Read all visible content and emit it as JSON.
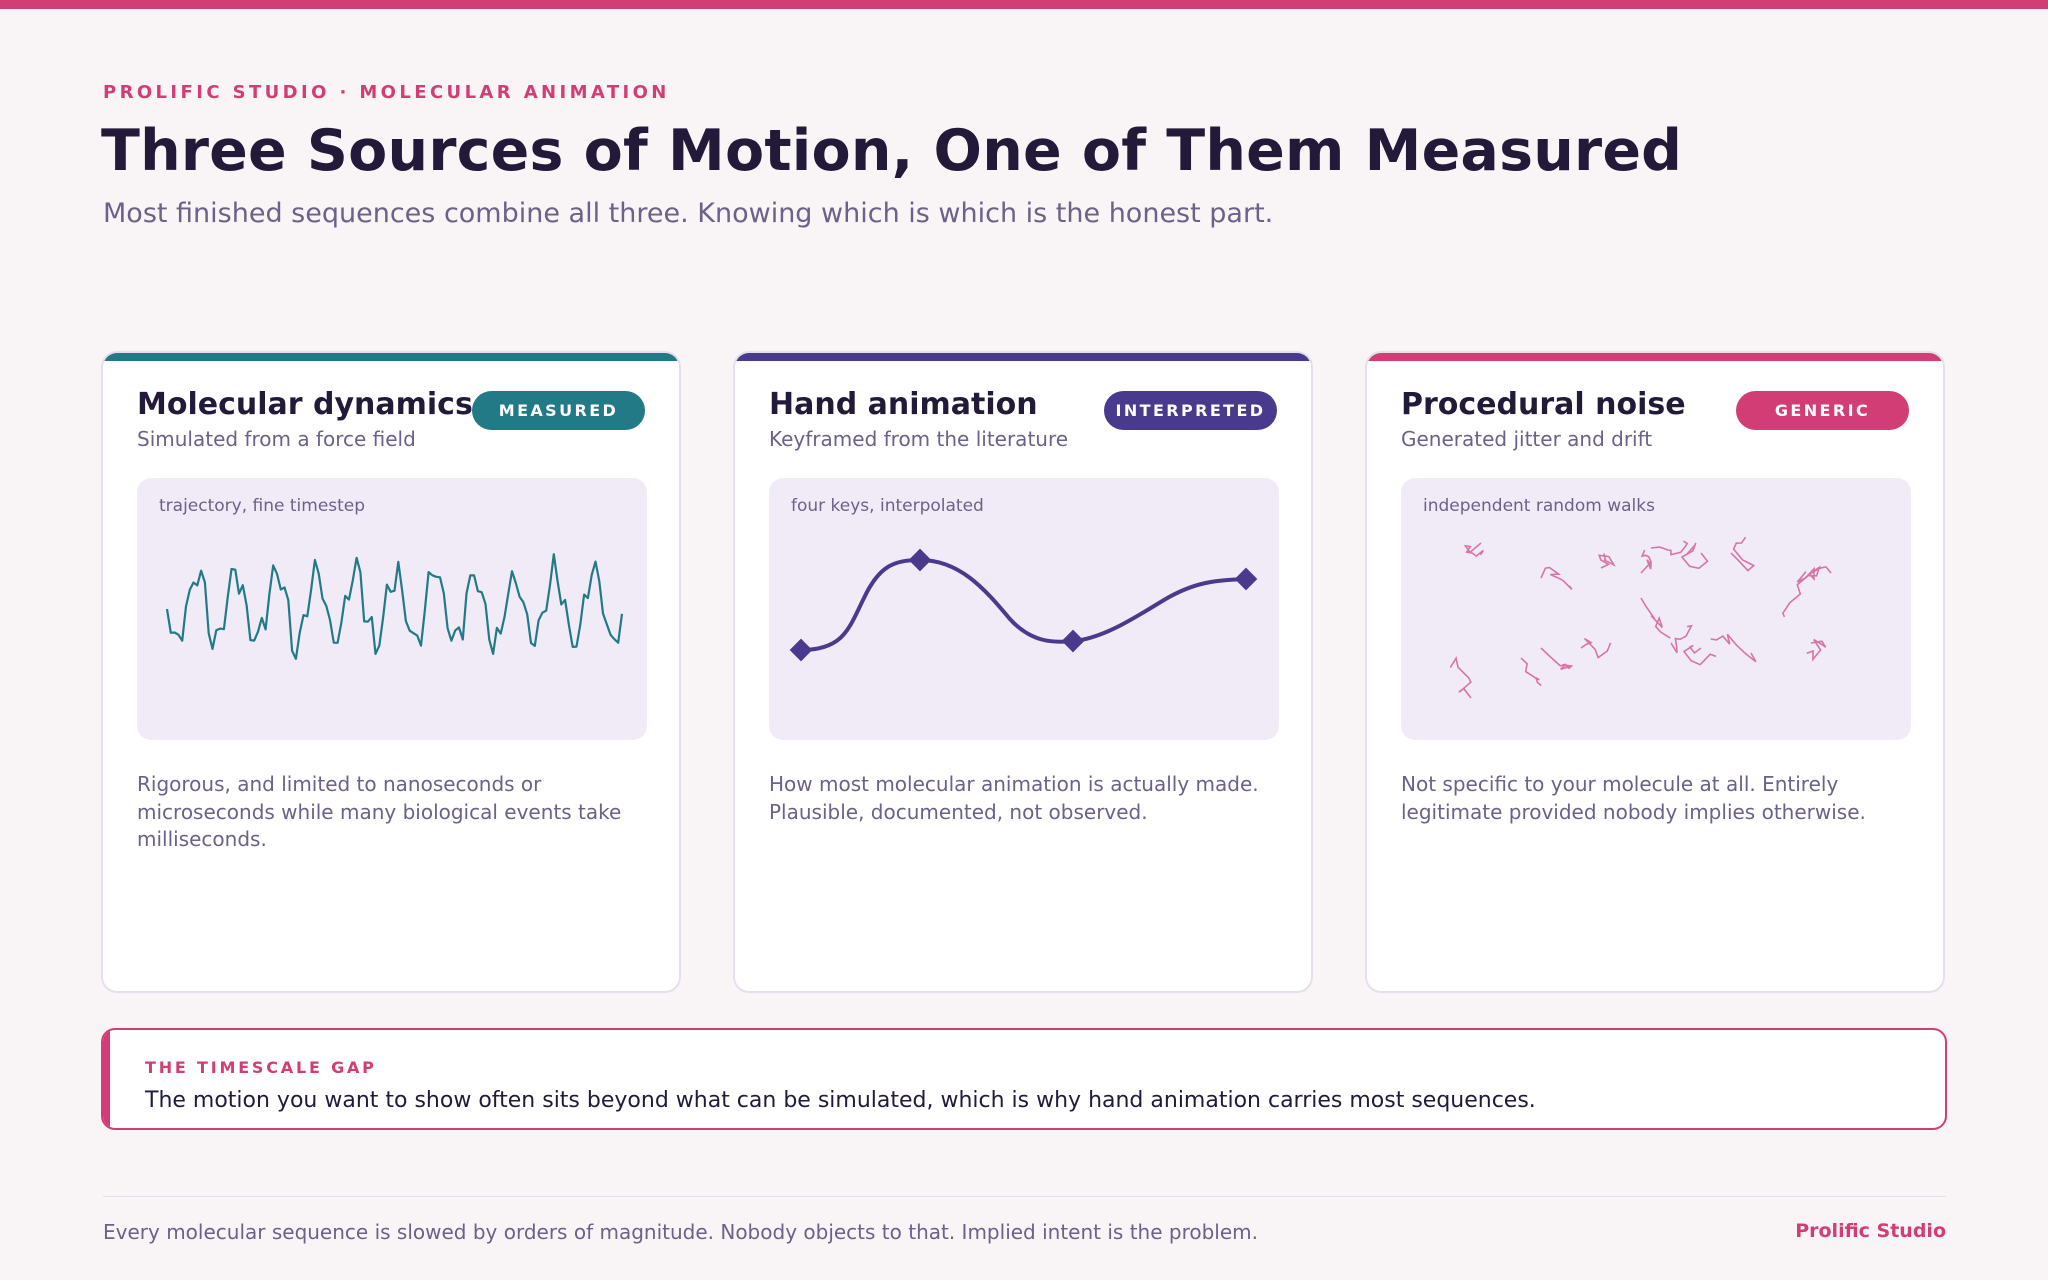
{
  "header": {
    "eyebrow": "PROLIFIC STUDIO · MOLECULAR ANIMATION",
    "title": "Three Sources of Motion, One of Them Measured",
    "subtitle": "Most finished sequences combine all three. Knowing which is which is the honest part."
  },
  "colors": {
    "brand": "#d23d75",
    "measured": "#217a86",
    "interpreted": "#4a3a8e",
    "generic": "#d23d75",
    "noise_stroke": "#d675a6"
  },
  "cards": [
    {
      "title": "Molecular dynamics",
      "badge": "MEASURED",
      "subtitle": "Simulated from a force field",
      "viz_label": "trajectory, fine timestep",
      "body": "Rigorous, and limited to nanoseconds or microseconds while many biological events take milliseconds."
    },
    {
      "title": "Hand animation",
      "badge": "INTERPRETED",
      "subtitle": "Keyframed from the literature",
      "viz_label": "four keys, interpolated",
      "body": "How most molecular animation is actually made. Plausible, documented, not observed."
    },
    {
      "title": "Procedural noise",
      "badge": "GENERIC",
      "subtitle": "Generated jitter and drift",
      "viz_label": "independent random walks",
      "body": "Not specific to your molecule at all. Entirely legitimate provided nobody implies otherwise."
    }
  ],
  "callout": {
    "label": "THE TIMESCALE GAP",
    "text": "The motion you want to show often sits beyond what can be simulated, which is why hand animation carries most sequences."
  },
  "footer": {
    "text": "Every molecular sequence is slowed by orders of magnitude. Nobody objects to that. Implied intent is the problem.",
    "brand": "Prolific Studio"
  }
}
